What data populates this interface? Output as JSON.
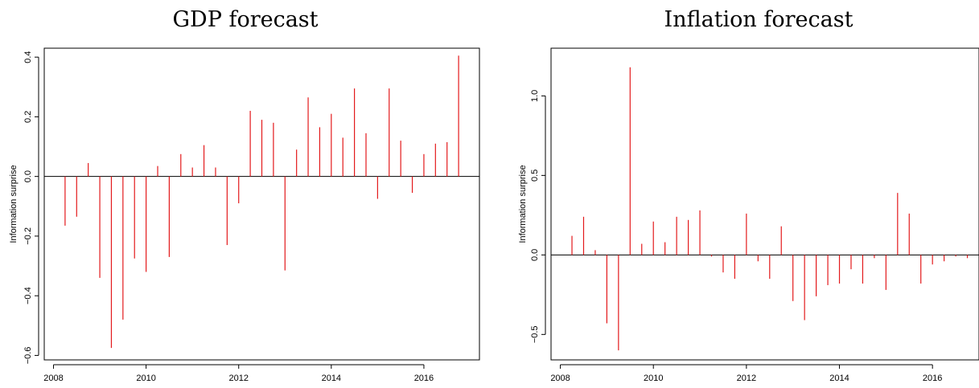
{
  "chart_data": [
    {
      "type": "bar",
      "title": "GDP forecast",
      "ylabel": "Information surprise",
      "xlabel": "",
      "xlim": [
        2007.8,
        2017.2
      ],
      "ylim": [
        -0.615,
        0.43
      ],
      "x_ticks": [
        2008,
        2010,
        2012,
        2014,
        2016
      ],
      "y_ticks": [
        -0.6,
        -0.4,
        -0.2,
        0.0,
        0.2,
        0.4
      ],
      "y_tick_labels": [
        "−0.6",
        "−0.4",
        "−0.2",
        "0.0",
        "0.2",
        "0.4"
      ],
      "color": "#e31a1c",
      "grid": false,
      "series": [
        {
          "x": [
            2008.25,
            2008.5,
            2008.75,
            2009.0,
            2009.25,
            2009.5,
            2009.75,
            2010.0,
            2010.25,
            2010.5,
            2010.75,
            2011.0,
            2011.25,
            2011.5,
            2011.75,
            2012.0,
            2012.25,
            2012.5,
            2012.75,
            2013.0,
            2013.25,
            2013.5,
            2013.75,
            2014.0,
            2014.25,
            2014.5,
            2014.75,
            2015.0,
            2015.25,
            2015.5,
            2015.75,
            2016.0,
            2016.25,
            2016.5,
            2016.75
          ],
          "values": [
            -0.165,
            -0.135,
            0.045,
            -0.34,
            -0.575,
            -0.48,
            -0.275,
            -0.32,
            0.035,
            -0.27,
            0.075,
            0.03,
            0.105,
            0.03,
            -0.23,
            -0.09,
            0.22,
            0.19,
            0.18,
            -0.315,
            0.09,
            0.265,
            0.165,
            0.21,
            0.13,
            0.295,
            0.145,
            -0.075,
            0.295,
            0.12,
            -0.055,
            0.075,
            0.11,
            0.115,
            0.405
          ]
        }
      ]
    },
    {
      "type": "bar",
      "title": "Inflation forecast",
      "ylabel": "Information surprise",
      "xlabel": "",
      "xlim": [
        2007.8,
        2017.0
      ],
      "ylim": [
        -0.66,
        1.3
      ],
      "x_ticks": [
        2008,
        2010,
        2012,
        2014,
        2016
      ],
      "y_ticks": [
        -0.5,
        0.0,
        0.5,
        1.0
      ],
      "y_tick_labels": [
        "−0.5",
        "0.0",
        "0.5",
        "1.0"
      ],
      "color": "#e31a1c",
      "grid": false,
      "series": [
        {
          "x": [
            2008.25,
            2008.5,
            2008.75,
            2009.0,
            2009.25,
            2009.5,
            2009.75,
            2010.0,
            2010.25,
            2010.5,
            2010.75,
            2011.0,
            2011.25,
            2011.5,
            2011.75,
            2012.0,
            2012.25,
            2012.5,
            2012.75,
            2013.0,
            2013.25,
            2013.5,
            2013.75,
            2014.0,
            2014.25,
            2014.5,
            2014.75,
            2015.0,
            2015.25,
            2015.5,
            2015.75,
            2016.0,
            2016.25,
            2016.5,
            2016.75
          ],
          "values": [
            0.12,
            0.24,
            0.03,
            -0.43,
            -0.6,
            1.18,
            0.07,
            0.21,
            0.08,
            0.24,
            0.22,
            0.28,
            -0.01,
            -0.11,
            -0.15,
            0.26,
            -0.04,
            -0.15,
            0.18,
            -0.29,
            -0.41,
            -0.26,
            -0.19,
            -0.18,
            -0.09,
            -0.18,
            -0.02,
            -0.22,
            0.39,
            0.26,
            -0.18,
            -0.06,
            -0.04,
            -0.01,
            -0.02
          ]
        }
      ]
    }
  ]
}
